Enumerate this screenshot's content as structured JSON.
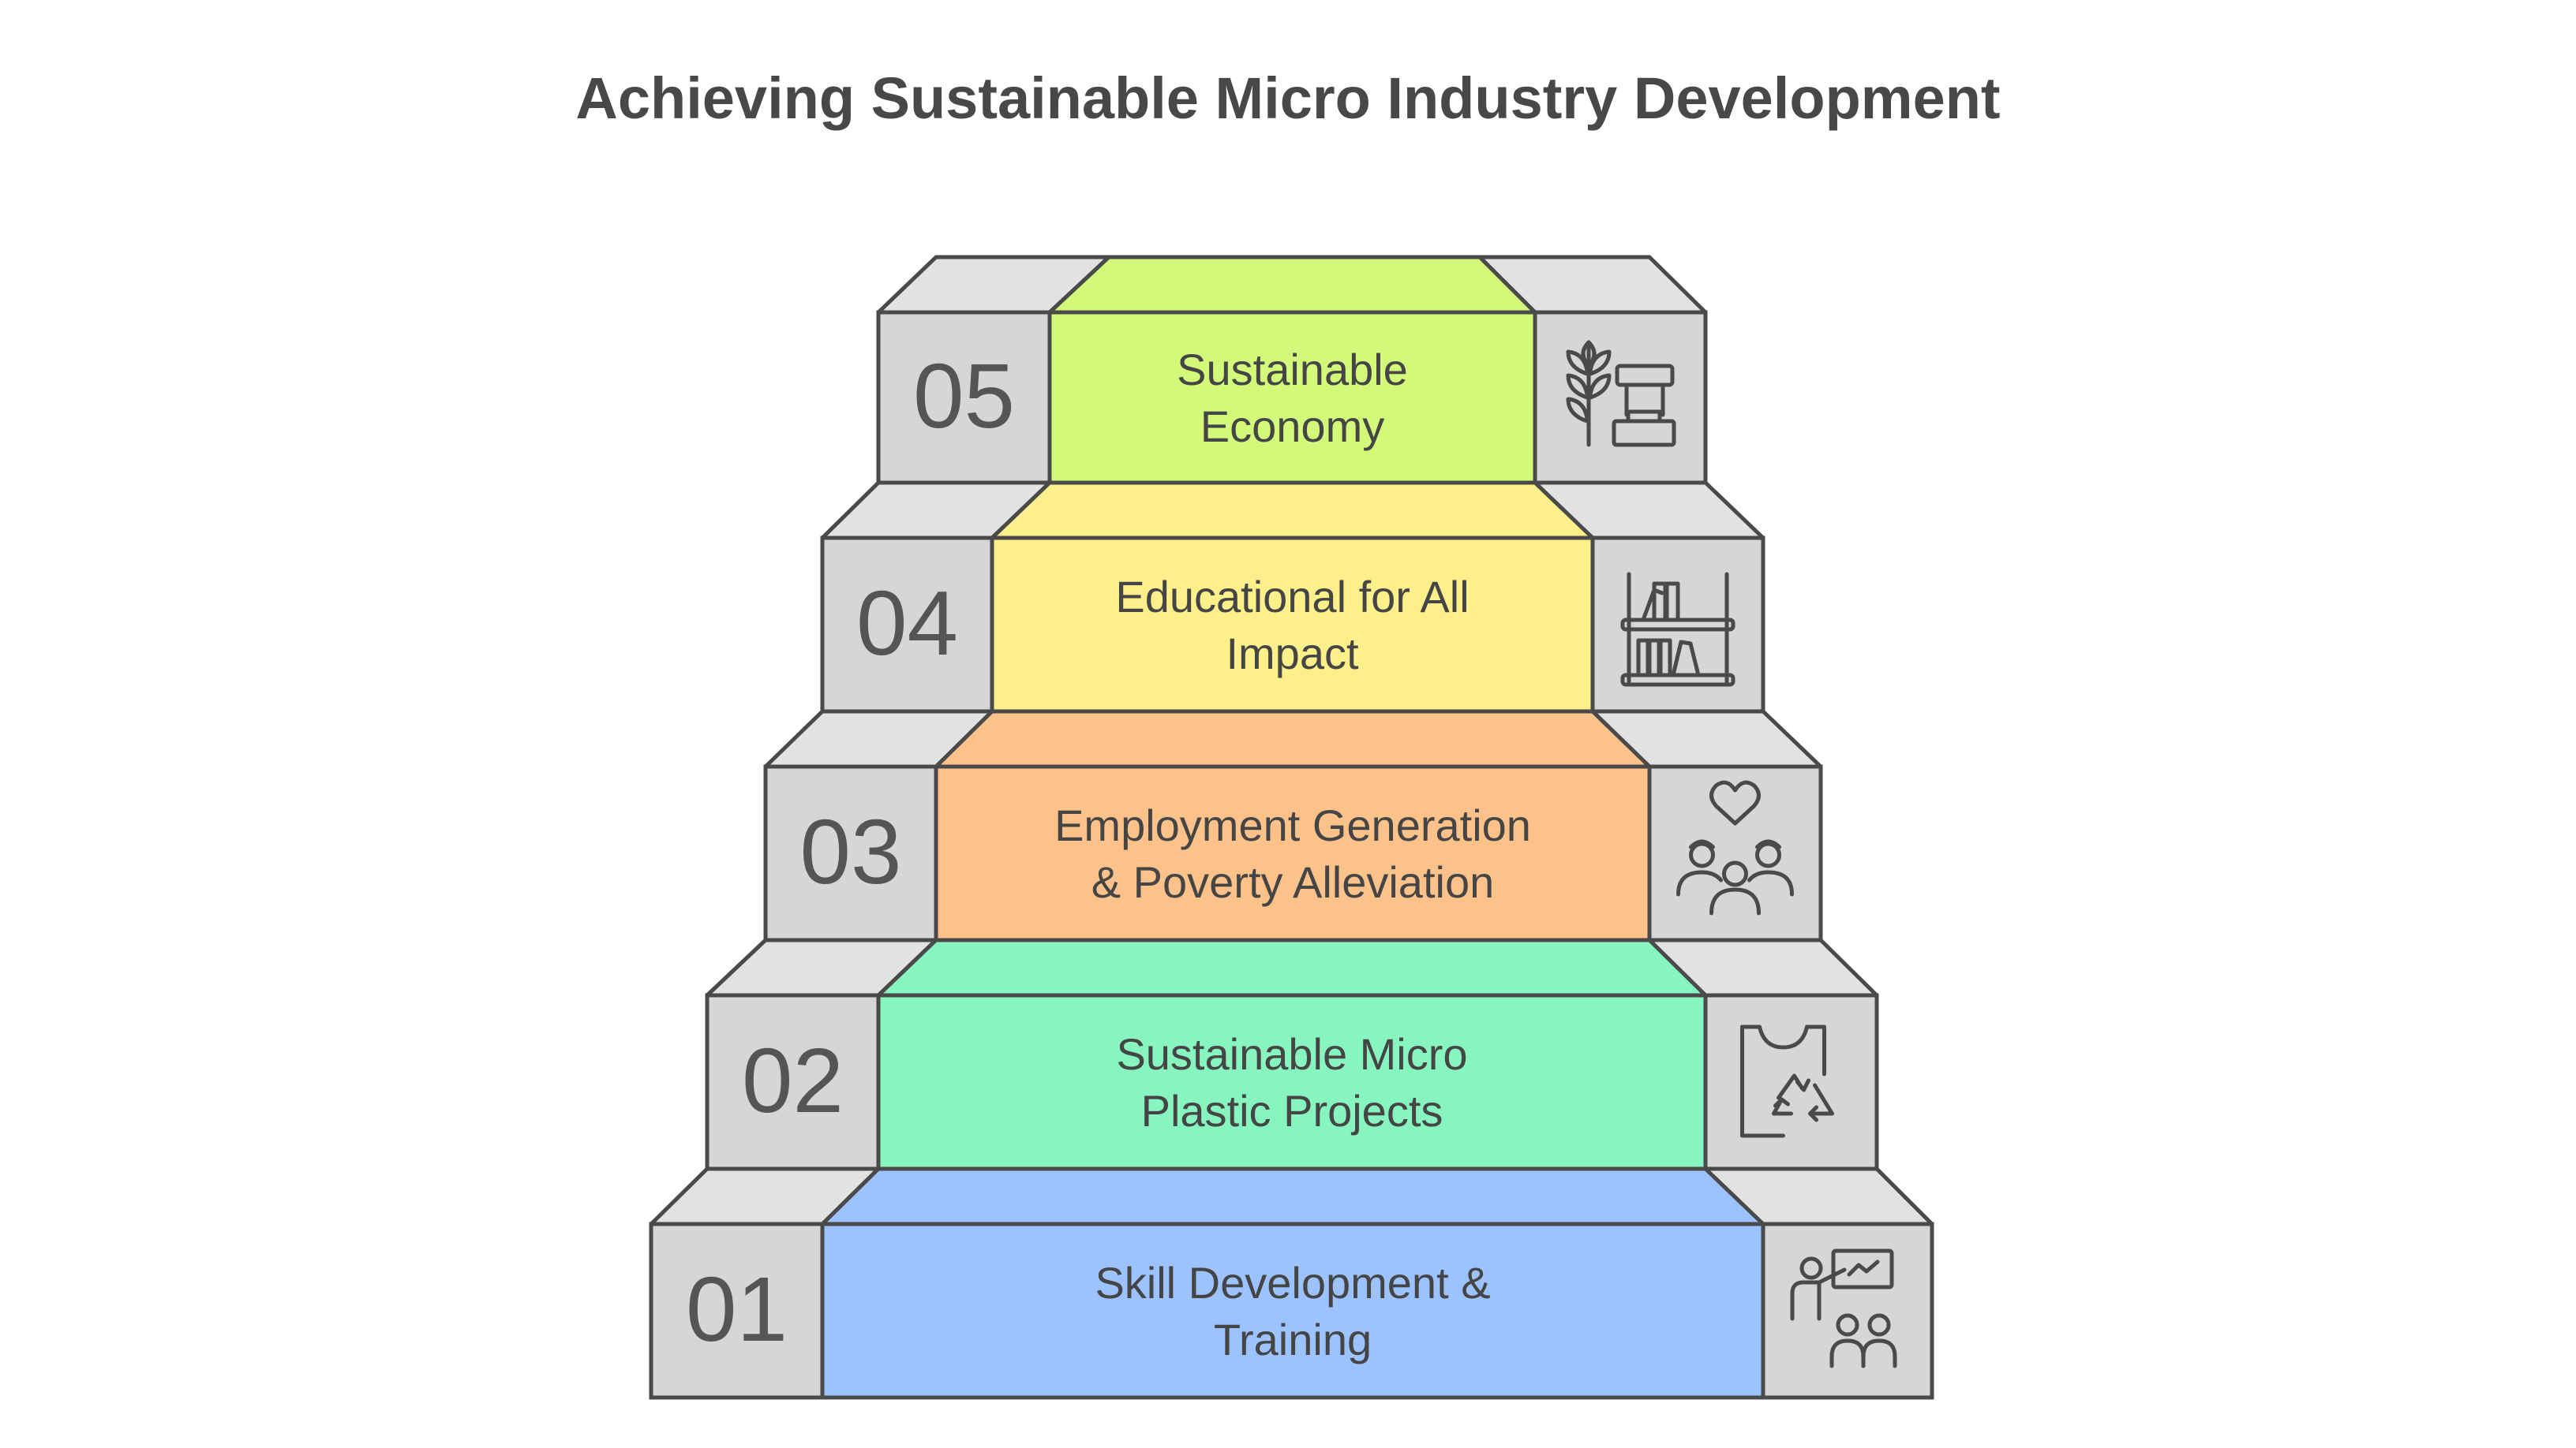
{
  "title": "Achieving Sustainable Micro Industry Development",
  "colors": {
    "outline": "#4a4a4a",
    "side_face": "#d6d6d6",
    "side_top": "#e2e2e2",
    "text": "#454545",
    "number": "#555555",
    "icon": "#4a4a4a"
  },
  "steps": [
    {
      "number": "01",
      "label_lines": [
        "Skill Development &",
        "Training"
      ],
      "color": "#9cc3ff",
      "icon": "teacher-students-icon"
    },
    {
      "number": "02",
      "label_lines": [
        "Sustainable Micro",
        "Plastic Projects"
      ],
      "color": "#86f5c0",
      "icon": "recycle-bag-icon"
    },
    {
      "number": "03",
      "label_lines": [
        "Employment Generation",
        "& Poverty Alleviation"
      ],
      "color": "#fdc28a",
      "icon": "community-heart-icon"
    },
    {
      "number": "04",
      "label_lines": [
        "Educational for All",
        "Impact"
      ],
      "color": "#fdf08a",
      "icon": "bookshelf-icon"
    },
    {
      "number": "05",
      "label_lines": [
        "Sustainable",
        "Economy"
      ],
      "color": "#d2f97a",
      "icon": "wheat-shop-icon"
    }
  ]
}
